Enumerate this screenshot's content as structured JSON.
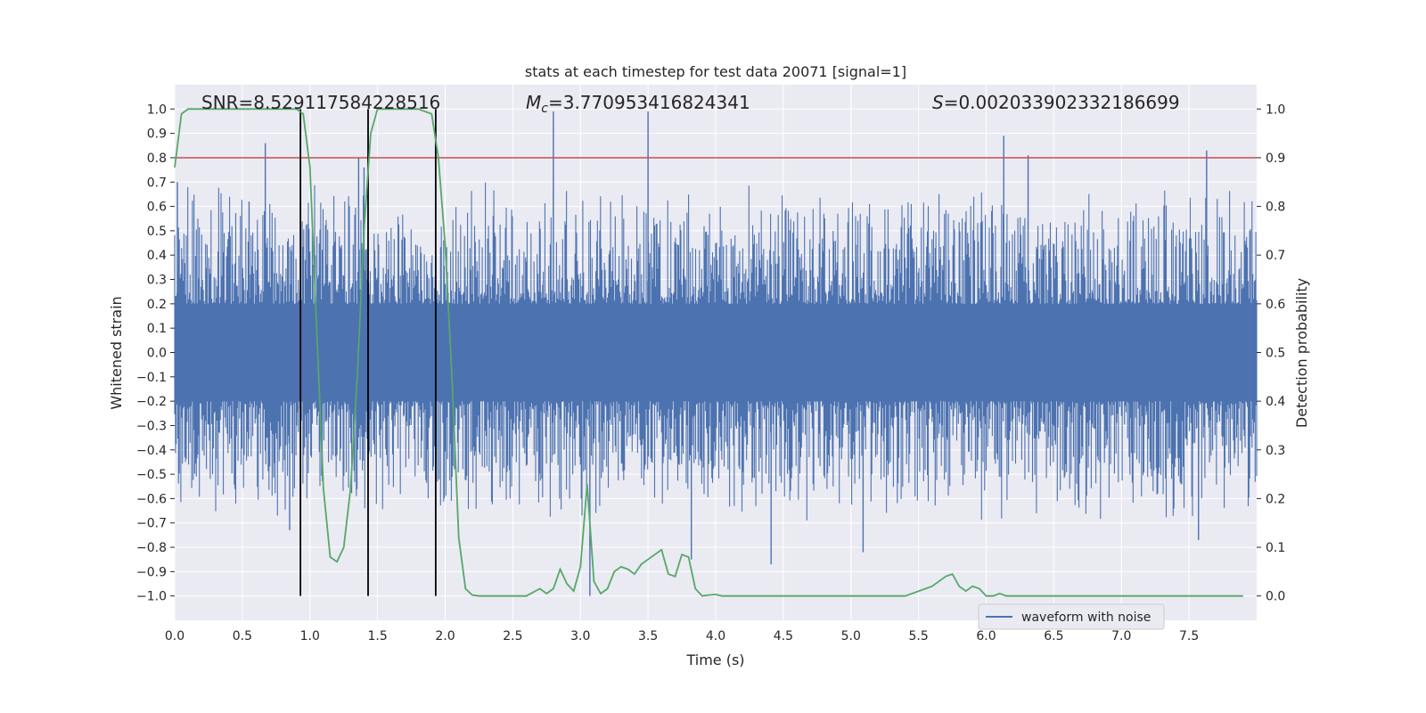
{
  "chart_data": {
    "type": "line",
    "title": "stats at each timestep for test data 20071 [signal=1]",
    "xlabel": "Time (s)",
    "ylabel_left": "Whitened strain",
    "ylabel_right": "Detection probability",
    "xlim": [
      0.0,
      8.0
    ],
    "ylim_left": [
      -1.1,
      1.1
    ],
    "ylim_right": [
      -0.05,
      1.05
    ],
    "xticks": [
      "0.0",
      "0.5",
      "1.0",
      "1.5",
      "2.0",
      "2.5",
      "3.0",
      "3.5",
      "4.0",
      "4.5",
      "5.0",
      "5.5",
      "6.0",
      "6.5",
      "7.0",
      "7.5"
    ],
    "yticks_left": [
      "1.0",
      "0.9",
      "0.8",
      "0.7",
      "0.6",
      "0.5",
      "0.4",
      "0.3",
      "0.2",
      "0.1",
      "0.0",
      "-0.1",
      "-0.2",
      "-0.3",
      "-0.4",
      "-0.5",
      "-0.6",
      "-0.7",
      "-0.8",
      "-0.9",
      "-1.0"
    ],
    "yticks_right": [
      "1.0",
      "0.9",
      "0.8",
      "0.7",
      "0.6",
      "0.5",
      "0.4",
      "0.3",
      "0.2",
      "0.1",
      "0.0"
    ],
    "annotations": {
      "snr": "SNR=8.529117584228516",
      "mc_symbol": "M",
      "mc_subscript": "c",
      "mc_value": "=3.770953416824341",
      "s_symbol": "S",
      "s_value": "=0.002033902332186699"
    },
    "legend": {
      "label": "waveform with noise",
      "position": "lower-right"
    },
    "threshold": {
      "value": 0.9,
      "axis": "right",
      "color": "#c44e52"
    },
    "vertical_lines": [
      0.93,
      1.43,
      1.93
    ],
    "waveform": {
      "name": "waveform with noise",
      "color": "#4c72b0",
      "core_band": [
        -0.2,
        0.2
      ],
      "typical_peak": 0.42,
      "x_range": [
        0.0,
        8.0
      ],
      "spikes": [
        {
          "x": 0.02,
          "y": 0.7
        },
        {
          "x": 0.55,
          "y": 0.62
        },
        {
          "x": 0.67,
          "y": 0.86
        },
        {
          "x": 1.36,
          "y": 0.8
        },
        {
          "x": 1.4,
          "y": 0.76
        },
        {
          "x": 2.8,
          "y": 0.99
        },
        {
          "x": 3.5,
          "y": 0.99
        },
        {
          "x": 6.13,
          "y": 0.89
        },
        {
          "x": 6.31,
          "y": 0.81
        },
        {
          "x": 7.63,
          "y": 0.83
        },
        {
          "x": 0.85,
          "y": -0.73
        },
        {
          "x": 1.93,
          "y": -0.75
        },
        {
          "x": 3.07,
          "y": -1.0
        },
        {
          "x": 3.82,
          "y": -0.85
        },
        {
          "x": 4.41,
          "y": -0.87
        },
        {
          "x": 5.09,
          "y": -0.82
        },
        {
          "x": 7.57,
          "y": -0.77
        }
      ]
    },
    "probability": {
      "name": "detection probability",
      "color": "#55a868",
      "x": [
        0.0,
        0.05,
        0.1,
        0.15,
        0.2,
        0.3,
        0.5,
        0.7,
        0.9,
        0.95,
        1.0,
        1.05,
        1.1,
        1.15,
        1.2,
        1.25,
        1.3,
        1.35,
        1.4,
        1.45,
        1.5,
        1.55,
        1.6,
        1.7,
        1.8,
        1.9,
        1.95,
        2.0,
        2.05,
        2.1,
        2.15,
        2.2,
        2.25,
        2.3,
        2.4,
        2.5,
        2.6,
        2.7,
        2.75,
        2.8,
        2.85,
        2.9,
        2.95,
        3.0,
        3.05,
        3.1,
        3.15,
        3.2,
        3.25,
        3.3,
        3.35,
        3.4,
        3.45,
        3.5,
        3.6,
        3.65,
        3.7,
        3.75,
        3.8,
        3.85,
        3.9,
        3.95,
        4.0,
        4.05,
        4.1,
        4.15,
        4.2,
        4.3,
        4.4,
        4.5,
        4.6,
        4.8,
        5.0,
        5.2,
        5.4,
        5.6,
        5.7,
        5.75,
        5.8,
        5.85,
        5.9,
        5.95,
        6.0,
        6.05,
        6.1,
        6.15,
        6.2,
        6.3,
        6.4,
        6.5,
        6.6,
        6.8,
        7.0,
        7.2,
        7.4,
        7.6,
        7.8,
        7.9
      ],
      "values": [
        0.88,
        0.99,
        1.0,
        1.0,
        1.0,
        1.0,
        1.0,
        1.0,
        1.0,
        0.99,
        0.88,
        0.55,
        0.22,
        0.08,
        0.07,
        0.1,
        0.22,
        0.45,
        0.75,
        0.95,
        1.0,
        1.0,
        1.0,
        1.0,
        1.0,
        0.99,
        0.9,
        0.72,
        0.45,
        0.12,
        0.015,
        0.002,
        0.0,
        0.0,
        0.0,
        0.0,
        0.0,
        0.015,
        0.005,
        0.015,
        0.055,
        0.025,
        0.01,
        0.06,
        0.23,
        0.03,
        0.005,
        0.015,
        0.05,
        0.06,
        0.055,
        0.045,
        0.065,
        0.075,
        0.095,
        0.045,
        0.04,
        0.085,
        0.08,
        0.015,
        0.0,
        0.002,
        0.003,
        0.0,
        0.0,
        0.0,
        0.0,
        0.0,
        0.0,
        0.0,
        0.0,
        0.0,
        0.0,
        0.0,
        0.0,
        0.02,
        0.04,
        0.045,
        0.02,
        0.01,
        0.02,
        0.015,
        0.0,
        0.0,
        0.005,
        0.0,
        0.0,
        0.0,
        0.0,
        0.0,
        0.0,
        0.0,
        0.0,
        0.0,
        0.0,
        0.0,
        0.0,
        0.0
      ]
    }
  }
}
